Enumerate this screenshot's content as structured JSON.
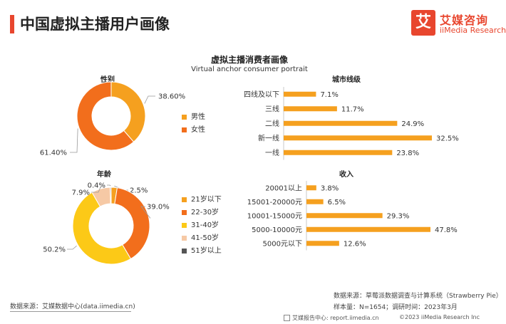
{
  "header": {
    "title": "中国虚拟主播用户画像"
  },
  "logo": {
    "mark": "艾",
    "name_cn": "艾媒咨询",
    "name_en": "iiMedia Research"
  },
  "chart_heading": {
    "title": "虚拟主播消费者画像",
    "subtitle": "Virtual anchor consumer portrait"
  },
  "colors": {
    "accent": "#e8462e",
    "bar": "#f5a01f",
    "orange_deep": "#f26e1c",
    "orange_mid": "#f5a01f",
    "yellow": "#fcc917",
    "peach": "#f6c9a5",
    "gray_dark": "#555555"
  },
  "chart_data": [
    {
      "type": "pie",
      "title": "性别",
      "categories": [
        "男性",
        "女性"
      ],
      "values": [
        38.6,
        61.4
      ],
      "labels": [
        "38.60%",
        "61.40%"
      ],
      "colors": [
        "#f5a01f",
        "#f26e1c"
      ],
      "legend": "right"
    },
    {
      "type": "pie",
      "title": "年龄",
      "categories": [
        "21岁以下",
        "22-30岁",
        "31-40岁",
        "41-50岁",
        "51岁以上"
      ],
      "values": [
        2.5,
        39.0,
        50.2,
        7.9,
        0.4
      ],
      "labels": [
        "2.5%",
        "39.0%",
        "50.2%",
        "7.9%",
        "0.4%"
      ],
      "colors": [
        "#f5a01f",
        "#f26e1c",
        "#fcc917",
        "#f6c9a5",
        "#555555"
      ],
      "legend": "right"
    },
    {
      "type": "bar",
      "orientation": "horizontal",
      "title": "城市线级",
      "categories": [
        "四线及以下",
        "三线",
        "二线",
        "新一线",
        "一线"
      ],
      "values": [
        7.1,
        11.7,
        24.9,
        32.5,
        23.8
      ],
      "labels": [
        "7.1%",
        "11.7%",
        "24.9%",
        "32.5%",
        "23.8%"
      ],
      "xlim": [
        0,
        32.5
      ]
    },
    {
      "type": "bar",
      "orientation": "horizontal",
      "title": "收入",
      "categories": [
        "20001以上",
        "15001-20000元",
        "10001-15000元",
        "5000-10000元",
        "5000元以下"
      ],
      "values": [
        3.8,
        6.5,
        29.3,
        47.8,
        12.6
      ],
      "labels": [
        "3.8%",
        "6.5%",
        "29.3%",
        "47.8%",
        "12.6%"
      ],
      "xlim": [
        0,
        47.8
      ]
    }
  ],
  "footer": {
    "source_left": "数据来源：艾媒数据中心(data.iimedia.cn)",
    "source_right": "数据来源：草莓派数据调查与计算系统（Strawberry Pie）",
    "sample": "样本量：N=1654；调研时间：2023年3月",
    "center": "艾媒报告中心: report.iimedia.cn",
    "copyright": "©2023  iiMedia Research  Inc"
  }
}
